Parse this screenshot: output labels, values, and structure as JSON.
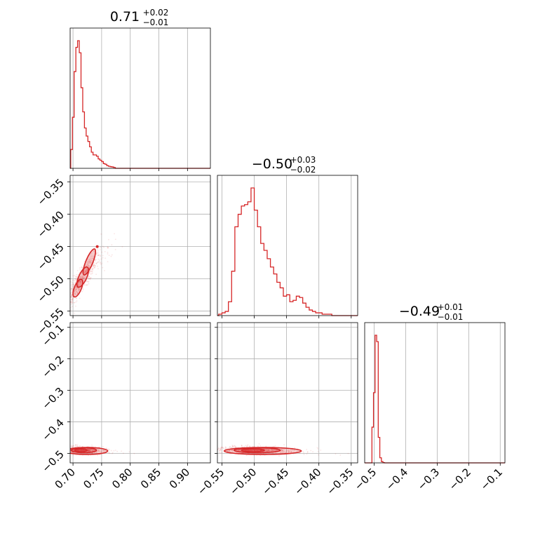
{
  "chart_data": {
    "type": "corner",
    "color": "#d62728",
    "grid": true,
    "parameters": [
      {
        "title_value": "0.71",
        "title_plus": "+0.02",
        "title_minus": "−0.01",
        "range": [
          0.695,
          0.94
        ],
        "ticks": [
          0.7,
          0.75,
          0.8,
          0.85,
          0.9
        ],
        "tick_labels": [
          "0.70",
          "0.75",
          "0.80",
          "0.85",
          "0.90"
        ]
      },
      {
        "title_value": "−0.50",
        "title_plus": "+0.03",
        "title_minus": "−0.02",
        "range": [
          -0.557,
          -0.34
        ],
        "ticks": [
          -0.35,
          -0.4,
          -0.45,
          -0.5,
          -0.55
        ],
        "tick_labels": [
          "−0.35",
          "−0.40",
          "−0.45",
          "−0.50",
          "−0.55"
        ]
      },
      {
        "title_value": "−0.49",
        "title_plus": "+0.01",
        "title_minus": "−0.01",
        "range": [
          -0.53,
          -0.085
        ],
        "ticks": [
          -0.5,
          -0.4,
          -0.3,
          -0.2,
          -0.1
        ],
        "tick_labels": [
          "−0.5",
          "−0.4",
          "−0.3",
          "−0.2",
          "−0.1"
        ]
      }
    ],
    "histograms": [
      {
        "param": 0,
        "bin_edges": [
          0.696,
          0.699,
          0.702,
          0.705,
          0.708,
          0.711,
          0.714,
          0.717,
          0.72,
          0.723,
          0.726,
          0.729,
          0.732,
          0.735,
          0.738,
          0.741,
          0.744,
          0.747,
          0.75,
          0.753,
          0.756,
          0.759,
          0.762,
          0.765,
          0.768,
          0.771,
          0.774
        ],
        "counts": [
          0.14,
          0.38,
          0.72,
          0.9,
          0.95,
          0.86,
          0.6,
          0.42,
          0.3,
          0.24,
          0.2,
          0.16,
          0.12,
          0.1,
          0.1,
          0.09,
          0.07,
          0.06,
          0.05,
          0.035,
          0.03,
          0.02,
          0.015,
          0.012,
          0.01,
          0.006
        ]
      },
      {
        "param": 1,
        "bin_edges": [
          -0.555,
          -0.55,
          -0.545,
          -0.54,
          -0.535,
          -0.53,
          -0.525,
          -0.52,
          -0.515,
          -0.51,
          -0.505,
          -0.5,
          -0.495,
          -0.49,
          -0.485,
          -0.48,
          -0.475,
          -0.47,
          -0.465,
          -0.46,
          -0.455,
          -0.45,
          -0.445,
          -0.44,
          -0.435,
          -0.43,
          -0.425,
          -0.42,
          -0.415,
          -0.41,
          -0.405,
          -0.4,
          -0.395,
          -0.39,
          -0.385,
          -0.38
        ],
        "counts": [
          0.01,
          0.02,
          0.03,
          0.1,
          0.32,
          0.64,
          0.73,
          0.79,
          0.8,
          0.82,
          0.92,
          0.76,
          0.64,
          0.52,
          0.47,
          0.41,
          0.35,
          0.3,
          0.24,
          0.2,
          0.14,
          0.15,
          0.1,
          0.11,
          0.14,
          0.13,
          0.09,
          0.06,
          0.04,
          0.03,
          0.02,
          0.02,
          0.01,
          0.01,
          0.01
        ]
      },
      {
        "param": 2,
        "bin_edges": [
          -0.507,
          -0.502,
          -0.497,
          -0.492,
          -0.487,
          -0.482,
          -0.477,
          -0.472,
          -0.467
        ],
        "counts": [
          0.28,
          0.55,
          1.0,
          0.95,
          0.2,
          0.04,
          0.01,
          0.002
        ]
      }
    ],
    "scatter": [
      {
        "xparam": 0,
        "yparam": 1,
        "correlation": 0.93,
        "x_mean": 0.712,
        "x_sd": 0.014,
        "y_mean": -0.503,
        "y_sd": 0.025,
        "contour_centers_x": [
          0.705,
          0.712,
          0.722,
          0.735
        ],
        "contour_centers_y": [
          -0.522,
          -0.507,
          -0.488,
          -0.46
        ]
      },
      {
        "xparam": 0,
        "yparam": 2,
        "correlation": -0.2,
        "x_mean": 0.714,
        "x_sd": 0.014,
        "y_mean": -0.49,
        "y_sd": 0.006
      },
      {
        "xparam": 1,
        "yparam": 2,
        "correlation": -0.25,
        "x_mean": -0.502,
        "x_sd": 0.025,
        "y_mean": -0.49,
        "y_sd": 0.006
      }
    ]
  }
}
